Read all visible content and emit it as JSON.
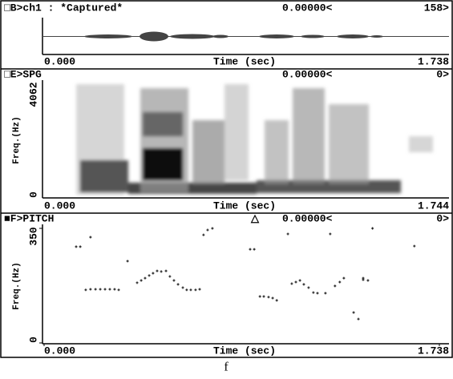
{
  "panels": [
    {
      "header": "□B>ch1 : *Captured*",
      "cursor": "0.00000<",
      "count": "158>",
      "x_start": "0.000",
      "x_label": "Time (sec)",
      "x_end": "1.738"
    },
    {
      "header": "□E>SPG",
      "cursor": "0.00000<",
      "count": "0>",
      "y_top": "4062",
      "y_bottom": "0",
      "y_label": "Freq.(Hz)",
      "x_start": "0.000",
      "x_label": "Time (sec)",
      "x_end": "1.744"
    },
    {
      "header": "■F>PITCH",
      "marker": "△",
      "cursor": "0.00000<",
      "count": "0>"
    }
  ],
  "chart_data": {
    "type": "scatter",
    "xlabel": "Time (sec)",
    "ylabel": "Freq.(Hz)",
    "color": "#222222",
    "xlim": [
      0,
      1.738
    ],
    "ylim": [
      0,
      350
    ],
    "xticks": [
      {
        "value": 0,
        "label": "0.000"
      },
      {
        "value": 1.738,
        "label": "1.738"
      }
    ],
    "yticks": [
      0,
      350
    ],
    "x": [
      0.141,
      0.159,
      0.204,
      0.183,
      0.204,
      0.226,
      0.247,
      0.268,
      0.289,
      0.31,
      0.328,
      0.367,
      0.409,
      0.427,
      0.444,
      0.462,
      0.479,
      0.497,
      0.515,
      0.536,
      0.553,
      0.571,
      0.589,
      0.61,
      0.627,
      0.645,
      0.666,
      0.684,
      0.701,
      0.719,
      0.74,
      0.906,
      0.924,
      0.949,
      0.966,
      0.987,
      1.005,
      1.023,
      1.072,
      1.089,
      1.107,
      1.125,
      1.142,
      1.163,
      1.184,
      1.202,
      1.237,
      1.258,
      1.279,
      1.3,
      1.318,
      1.361,
      1.382,
      1.403,
      1.403,
      1.424,
      1.444,
      1.628
    ],
    "values": [
      294,
      294,
      323,
      162,
      164,
      164,
      164,
      164,
      164,
      164,
      162,
      250,
      184,
      191,
      198,
      206,
      213,
      220,
      218,
      220,
      203,
      191,
      179,
      169,
      162,
      162,
      162,
      164,
      330,
      345,
      350,
      286,
      286,
      142,
      142,
      140,
      137,
      130,
      333,
      181,
      186,
      191,
      179,
      169,
      154,
      152,
      152,
      333,
      174,
      186,
      198,
      93,
      73,
      193,
      198,
      191,
      350,
      296
    ]
  }
}
